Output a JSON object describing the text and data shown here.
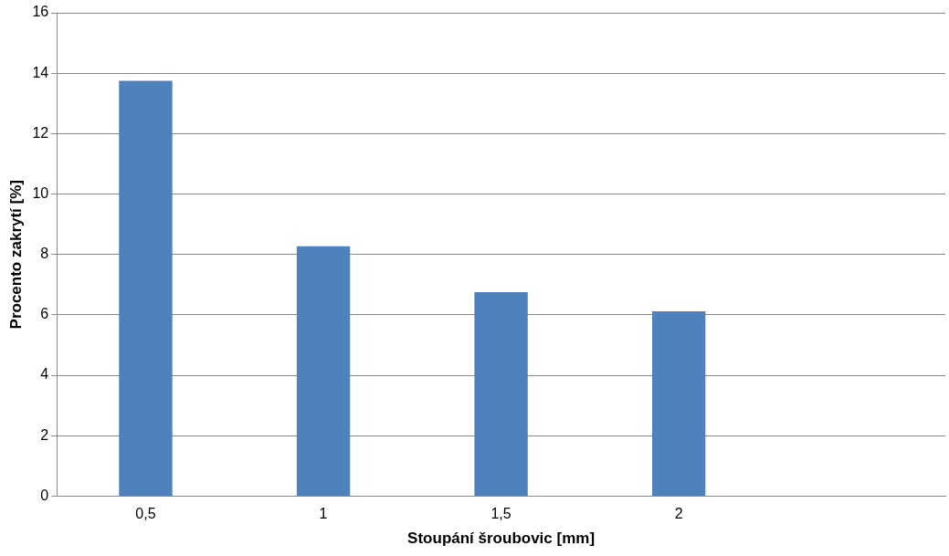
{
  "chart_data": {
    "type": "bar",
    "xlabel": "Stoupání šroubovic [mm]",
    "ylabel": "Procento zakrytí [%]",
    "categories": [
      "0,5",
      "1",
      "1,5",
      "2",
      null
    ],
    "values": [
      13.75,
      8.27,
      6.75,
      6.12,
      null
    ],
    "color": "#4f81bd",
    "ylim": [
      0,
      16
    ],
    "yticks": [
      0,
      2,
      4,
      6,
      8,
      10,
      12,
      14,
      16
    ],
    "grid": "y"
  }
}
